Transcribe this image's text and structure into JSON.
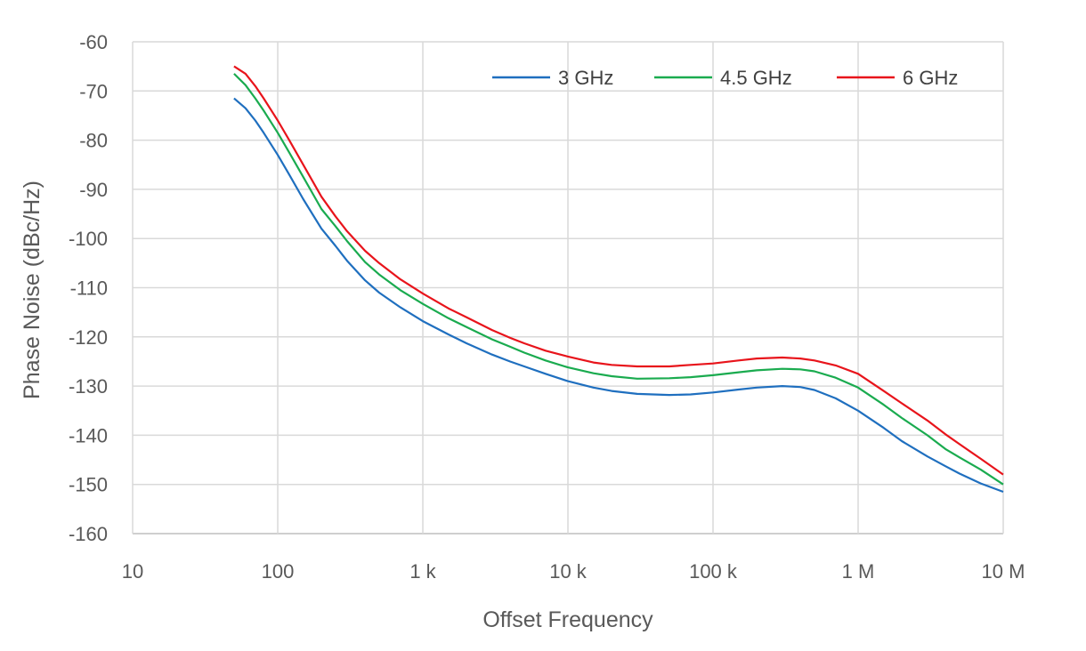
{
  "chart_data": {
    "type": "line",
    "title": "",
    "xlabel": "Offset Frequency",
    "ylabel": "Phase Noise (dBc/Hz)",
    "x_scale": "log",
    "xlim": [
      10,
      10000000
    ],
    "ylim": [
      -160,
      -60
    ],
    "grid": true,
    "legend_position": "top-right",
    "x_ticks": [
      {
        "value": 10,
        "label": "10"
      },
      {
        "value": 100,
        "label": "100"
      },
      {
        "value": 1000,
        "label": "1 k"
      },
      {
        "value": 10000,
        "label": "10 k"
      },
      {
        "value": 100000,
        "label": "100 k"
      },
      {
        "value": 1000000,
        "label": "1 M"
      },
      {
        "value": 10000000,
        "label": "10 M"
      }
    ],
    "y_ticks": [
      -60,
      -70,
      -80,
      -90,
      -100,
      -110,
      -120,
      -130,
      -140,
      -150,
      -160
    ],
    "series": [
      {
        "name": "3 GHz",
        "color": "#1f6fbf",
        "x": [
          50,
          60,
          70,
          80,
          100,
          120,
          150,
          200,
          250,
          300,
          400,
          500,
          700,
          1000,
          1500,
          2000,
          3000,
          4000,
          5000,
          7000,
          10000,
          15000,
          20000,
          30000,
          50000,
          70000,
          100000,
          150000,
          200000,
          300000,
          400000,
          500000,
          700000,
          1000000,
          1500000,
          2000000,
          3000000,
          4000000,
          5000000,
          7000000,
          10000000
        ],
        "y": [
          -71.5,
          -73.5,
          -76,
          -78.5,
          -83,
          -87,
          -92,
          -98,
          -101.5,
          -104.5,
          -108.5,
          -111,
          -114,
          -116.8,
          -119.5,
          -121.3,
          -123.6,
          -125,
          -126,
          -127.5,
          -129,
          -130.3,
          -131,
          -131.6,
          -131.8,
          -131.7,
          -131.3,
          -130.7,
          -130.3,
          -130,
          -130.2,
          -130.8,
          -132.5,
          -135,
          -138.5,
          -141.2,
          -144.3,
          -146.3,
          -147.8,
          -149.8,
          -151.5
        ]
      },
      {
        "name": "4.5 GHz",
        "color": "#1aab4f",
        "x": [
          50,
          60,
          70,
          80,
          100,
          120,
          150,
          200,
          250,
          300,
          400,
          500,
          700,
          1000,
          1500,
          2000,
          3000,
          4000,
          5000,
          7000,
          10000,
          15000,
          20000,
          30000,
          50000,
          70000,
          100000,
          150000,
          200000,
          300000,
          400000,
          500000,
          700000,
          1000000,
          1500000,
          2000000,
          3000000,
          4000000,
          5000000,
          7000000,
          10000000
        ],
        "y": [
          -66.5,
          -68.8,
          -71.5,
          -74,
          -78.5,
          -82.5,
          -87.5,
          -94,
          -97.5,
          -100.5,
          -104.8,
          -107.3,
          -110.5,
          -113.3,
          -116.2,
          -118,
          -120.5,
          -122,
          -123.2,
          -124.8,
          -126.2,
          -127.4,
          -128,
          -128.5,
          -128.4,
          -128.2,
          -127.8,
          -127.2,
          -126.8,
          -126.5,
          -126.6,
          -127,
          -128.3,
          -130.3,
          -133.8,
          -136.5,
          -140,
          -142.8,
          -144.5,
          -147,
          -150
        ]
      },
      {
        "name": "6 GHz",
        "color": "#e8141b",
        "x": [
          50,
          60,
          70,
          80,
          100,
          120,
          150,
          200,
          250,
          300,
          400,
          500,
          700,
          1000,
          1500,
          2000,
          3000,
          4000,
          5000,
          7000,
          10000,
          15000,
          20000,
          30000,
          50000,
          70000,
          100000,
          150000,
          200000,
          300000,
          400000,
          500000,
          700000,
          1000000,
          1500000,
          2000000,
          3000000,
          4000000,
          5000000,
          7000000,
          10000000
        ],
        "y": [
          -65,
          -66.5,
          -69,
          -71.5,
          -76,
          -80,
          -85,
          -91.5,
          -95.5,
          -98.5,
          -102.5,
          -105,
          -108.3,
          -111.2,
          -114.2,
          -116,
          -118.6,
          -120.2,
          -121.3,
          -122.8,
          -124,
          -125.2,
          -125.7,
          -126,
          -126,
          -125.7,
          -125.4,
          -124.8,
          -124.4,
          -124.2,
          -124.4,
          -124.8,
          -125.8,
          -127.5,
          -131,
          -133.5,
          -137,
          -139.8,
          -141.8,
          -144.8,
          -148
        ]
      }
    ]
  }
}
